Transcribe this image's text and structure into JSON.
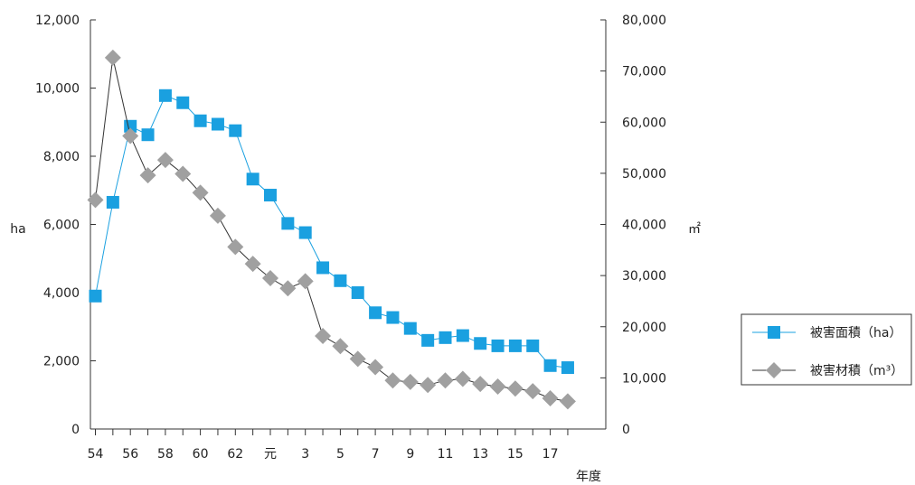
{
  "chart_data": {
    "type": "line",
    "x_tick_labels": [
      "54",
      "56",
      "58",
      "60",
      "62",
      "元",
      "3",
      "5",
      "7",
      "9",
      "11",
      "13",
      "15",
      "17"
    ],
    "xlabel": "年度",
    "y_left_label": "ha",
    "y_right_label": "㎡",
    "y_left_lim": [
      0,
      12000
    ],
    "y_right_lim": [
      0,
      80000
    ],
    "y_left_ticks": [
      "0",
      "2,000",
      "4,000",
      "6,000",
      "8,000",
      "10,000",
      "12,000"
    ],
    "y_right_ticks": [
      "0",
      "10,000",
      "20,000",
      "30,000",
      "40,000",
      "50,000",
      "60,000",
      "70,000",
      "80,000"
    ],
    "grid": false,
    "legend_position": "right",
    "series": [
      {
        "name": "被害面積（ha）",
        "axis": "left",
        "color": "#1aa0e0",
        "marker": "square",
        "values": [
          3900,
          6650,
          8880,
          8630,
          9780,
          9570,
          9040,
          8940,
          8750,
          7330,
          6860,
          6030,
          5760,
          4730,
          4350,
          4000,
          3410,
          3270,
          2950,
          2600,
          2680,
          2740,
          2510,
          2440,
          2440,
          2440,
          1860,
          1800
        ]
      },
      {
        "name": "被害材積（m³）",
        "axis": "right",
        "color": "#a0a0a0",
        "marker": "diamond",
        "values": [
          44800,
          72600,
          57300,
          49600,
          52600,
          49900,
          46200,
          41700,
          35600,
          32300,
          29500,
          27500,
          28900,
          18200,
          16200,
          13700,
          12100,
          9500,
          9200,
          8600,
          9500,
          9800,
          8800,
          8300,
          7900,
          7400,
          6000,
          5400
        ]
      }
    ]
  }
}
